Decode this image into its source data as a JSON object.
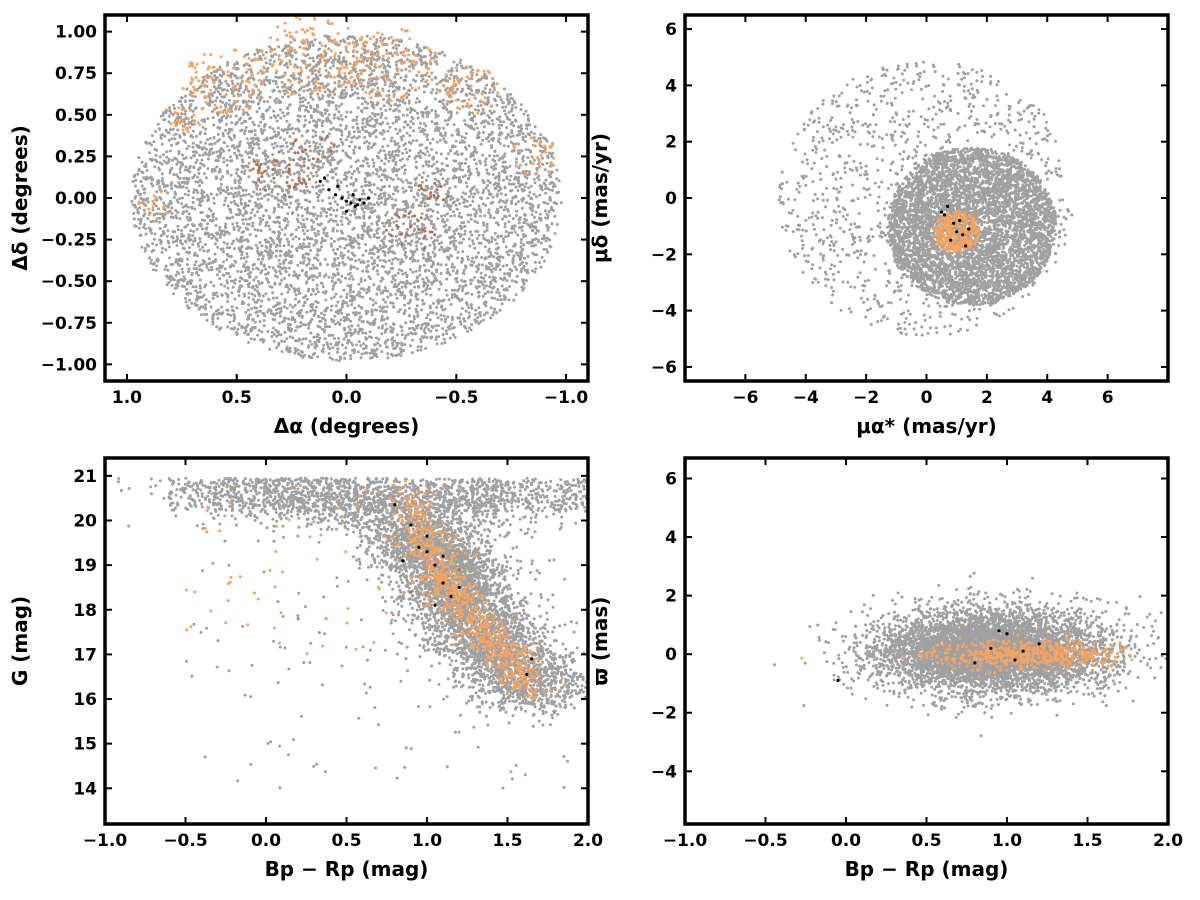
{
  "chart_data": [
    {
      "type": "scatter",
      "title": "",
      "xlabel": "Δα (degrees)",
      "ylabel": "Δδ (degrees)",
      "xlim": [
        1.1,
        -1.1
      ],
      "ylim": [
        -1.1,
        1.1
      ],
      "x_reversed": true,
      "xticks": [
        1.0,
        0.5,
        0.0,
        -0.5,
        -1.0
      ],
      "xtick_labels": [
        "1.0",
        "0.5",
        "0.0",
        "−0.5",
        "−1.0"
      ],
      "yticks": [
        1.0,
        0.75,
        0.5,
        0.25,
        0.0,
        -0.25,
        -0.5,
        -0.75,
        -1.0
      ],
      "ytick_labels": [
        "1.00",
        "0.75",
        "0.50",
        "0.25",
        "0.00",
        "−0.25",
        "−0.50",
        "−0.75",
        "−1.00"
      ],
      "grid": false,
      "legend": "none",
      "field_distribution": {
        "shape": "disk",
        "center": [
          0,
          0
        ],
        "radius": 0.98,
        "approx_points": 9000
      },
      "series": [
        {
          "color": "#a0a0a0",
          "role": "field stars",
          "clusters": [
            {
              "x": 0,
              "y": 0,
              "r": 0.98,
              "n": 6000
            }
          ]
        },
        {
          "color": "#f4a460",
          "role": "orange members",
          "clusters": [
            {
              "x": 0.55,
              "y": 0.7,
              "r": 0.2,
              "n": 90
            },
            {
              "x": 0.15,
              "y": 0.85,
              "r": 0.25,
              "n": 120
            },
            {
              "x": -0.2,
              "y": 0.8,
              "r": 0.22,
              "n": 100
            },
            {
              "x": -0.55,
              "y": 0.65,
              "r": 0.15,
              "n": 50
            },
            {
              "x": -0.85,
              "y": 0.25,
              "r": 0.12,
              "n": 30
            },
            {
              "x": 0.75,
              "y": 0.45,
              "r": 0.1,
              "n": 25
            },
            {
              "x": 0.85,
              "y": -0.05,
              "r": 0.1,
              "n": 15
            }
          ]
        },
        {
          "color": "#b5704a",
          "role": "brown members",
          "clusters": [
            {
              "x": 0.3,
              "y": 0.15,
              "r": 0.15,
              "n": 40
            },
            {
              "x": -0.3,
              "y": -0.2,
              "r": 0.12,
              "n": 25
            },
            {
              "x": -0.4,
              "y": 0.05,
              "r": 0.08,
              "n": 15
            },
            {
              "x": 0.15,
              "y": 0.3,
              "r": 0.1,
              "n": 15
            }
          ]
        },
        {
          "color": "#000000",
          "role": "black members",
          "points": [
            [
              0.12,
              0.1
            ],
            [
              0.08,
              0.05
            ],
            [
              0.05,
              0.02
            ],
            [
              0.02,
              0.0
            ],
            [
              0.0,
              -0.02
            ],
            [
              -0.02,
              -0.03
            ],
            [
              -0.04,
              -0.05
            ],
            [
              -0.06,
              -0.01
            ],
            [
              -0.08,
              -0.03
            ],
            [
              -0.1,
              0.0
            ],
            [
              0.04,
              0.07
            ],
            [
              -0.03,
              0.02
            ],
            [
              0.1,
              0.12
            ],
            [
              0.0,
              -0.08
            ],
            [
              -0.05,
              -0.04
            ]
          ]
        }
      ]
    },
    {
      "type": "scatter",
      "title": "",
      "xlabel": "μα* (mas/yr)",
      "ylabel": "μδ (mas/yr)",
      "xlim": [
        -8,
        8
      ],
      "ylim": [
        -6.5,
        6.5
      ],
      "xticks": [
        -6,
        -4,
        -2,
        0,
        2,
        4,
        6
      ],
      "xtick_labels": [
        "−6",
        "−4",
        "−2",
        "0",
        "2",
        "4",
        "6"
      ],
      "yticks": [
        6,
        4,
        2,
        0,
        -2,
        -4,
        -6
      ],
      "ytick_labels": [
        "6",
        "4",
        "2",
        "0",
        "−2",
        "−4",
        "−6"
      ],
      "grid": false,
      "legend": "none",
      "series": [
        {
          "color": "#a0a0a0",
          "role": "field stars",
          "clusters": [
            {
              "x": 1.5,
              "y": -1.0,
              "r": 2.8,
              "n": 4500
            },
            {
              "x": 0,
              "y": 0,
              "r": 4.9,
              "n": 1200
            }
          ]
        },
        {
          "color": "#f4a460",
          "role": "members",
          "clusters": [
            {
              "x": 1.0,
              "y": -1.2,
              "r": 0.75,
              "n": 300
            }
          ]
        },
        {
          "color": "#000000",
          "role": "black members",
          "points": [
            [
              0.6,
              -0.6
            ],
            [
              0.9,
              -0.9
            ],
            [
              1.2,
              -1.3
            ],
            [
              0.5,
              -0.5
            ],
            [
              1.4,
              -1.1
            ],
            [
              0.8,
              -1.5
            ],
            [
              1.1,
              -0.8
            ],
            [
              0.7,
              -0.3
            ],
            [
              1.3,
              -1.7
            ],
            [
              1.0,
              -1.2
            ]
          ]
        }
      ]
    },
    {
      "type": "scatter",
      "title": "",
      "xlabel": "Bp − Rp (mag)",
      "ylabel": "G (mag)",
      "xlim": [
        -1.0,
        2.0
      ],
      "ylim": [
        13.2,
        21.4
      ],
      "xticks": [
        -1.0,
        -0.5,
        0.0,
        0.5,
        1.0,
        1.5,
        2.0
      ],
      "xtick_labels": [
        "−1.0",
        "−0.5",
        "0.0",
        "0.5",
        "1.0",
        "1.5",
        "2.0"
      ],
      "yticks": [
        21,
        20,
        19,
        18,
        17,
        16,
        15,
        14
      ],
      "ytick_labels": [
        "21",
        "20",
        "19",
        "18",
        "17",
        "16",
        "15",
        "14"
      ],
      "grid": false,
      "legend": "none",
      "series": [
        {
          "color": "#a0a0a0",
          "role": "field stars",
          "sequence": [
            [
              0.3,
              20.7
            ],
            [
              0.8,
              20.3
            ],
            [
              1.0,
              19.5
            ],
            [
              1.1,
              19.0
            ],
            [
              1.2,
              18.3
            ],
            [
              1.35,
              17.5
            ],
            [
              1.5,
              16.8
            ],
            [
              1.7,
              16.0
            ]
          ]
        },
        {
          "color": "#f4a460",
          "role": "members",
          "sequence": [
            [
              0.9,
              20.5
            ],
            [
              1.0,
              19.5
            ],
            [
              1.1,
              18.8
            ],
            [
              1.2,
              18.2
            ],
            [
              1.35,
              17.5
            ],
            [
              1.5,
              17.0
            ],
            [
              1.65,
              16.3
            ]
          ]
        },
        {
          "color": "#000000",
          "role": "black members",
          "points": [
            [
              0.8,
              20.35
            ],
            [
              0.9,
              19.9
            ],
            [
              0.95,
              19.4
            ],
            [
              1.0,
              19.3
            ],
            [
              1.05,
              19.0
            ],
            [
              1.1,
              18.6
            ],
            [
              1.15,
              18.3
            ],
            [
              1.05,
              18.1
            ],
            [
              1.2,
              18.5
            ],
            [
              0.85,
              19.1
            ],
            [
              1.65,
              16.9
            ],
            [
              1.62,
              16.55
            ],
            [
              1.0,
              19.65
            ],
            [
              1.1,
              19.2
            ]
          ]
        },
        {
          "color": "#b5704a",
          "role": "brown members",
          "points": [
            [
              0.2,
              17.8
            ],
            [
              0.9,
              18.4
            ],
            [
              1.2,
              18.9
            ]
          ]
        }
      ]
    },
    {
      "type": "scatter",
      "title": "",
      "xlabel": "Bp − Rp (mag)",
      "ylabel": "ϖ (mas)",
      "xlim": [
        -1.0,
        2.0
      ],
      "ylim": [
        -5.8,
        6.7
      ],
      "xticks": [
        -1.0,
        -0.5,
        0.0,
        0.5,
        1.0,
        1.5,
        2.0
      ],
      "xtick_labels": [
        "−1.0",
        "−0.5",
        "0.0",
        "0.5",
        "1.0",
        "1.5",
        "2.0"
      ],
      "yticks": [
        6,
        4,
        2,
        0,
        -2,
        -4
      ],
      "ytick_labels": [
        "6",
        "4",
        "2",
        "0",
        "−2",
        "−4"
      ],
      "grid": false,
      "legend": "none",
      "series": [
        {
          "color": "#a0a0a0",
          "role": "field stars",
          "clusters": [
            {
              "x": 0.9,
              "y": 0.1,
              "sx": 0.35,
              "sy": 0.7,
              "n": 6000
            }
          ]
        },
        {
          "color": "#f4a460",
          "role": "members",
          "clusters": [
            {
              "x": 1.1,
              "y": 0.0,
              "sx": 0.3,
              "sy": 0.25,
              "n": 500
            }
          ]
        },
        {
          "color": "#000000",
          "role": "black members",
          "points": [
            [
              0.95,
              0.8
            ],
            [
              1.0,
              0.7
            ],
            [
              0.8,
              -0.3
            ],
            [
              1.2,
              0.35
            ],
            [
              -0.05,
              -0.9
            ],
            [
              1.05,
              -0.2
            ],
            [
              0.9,
              0.2
            ],
            [
              1.1,
              0.1
            ]
          ]
        }
      ]
    }
  ]
}
